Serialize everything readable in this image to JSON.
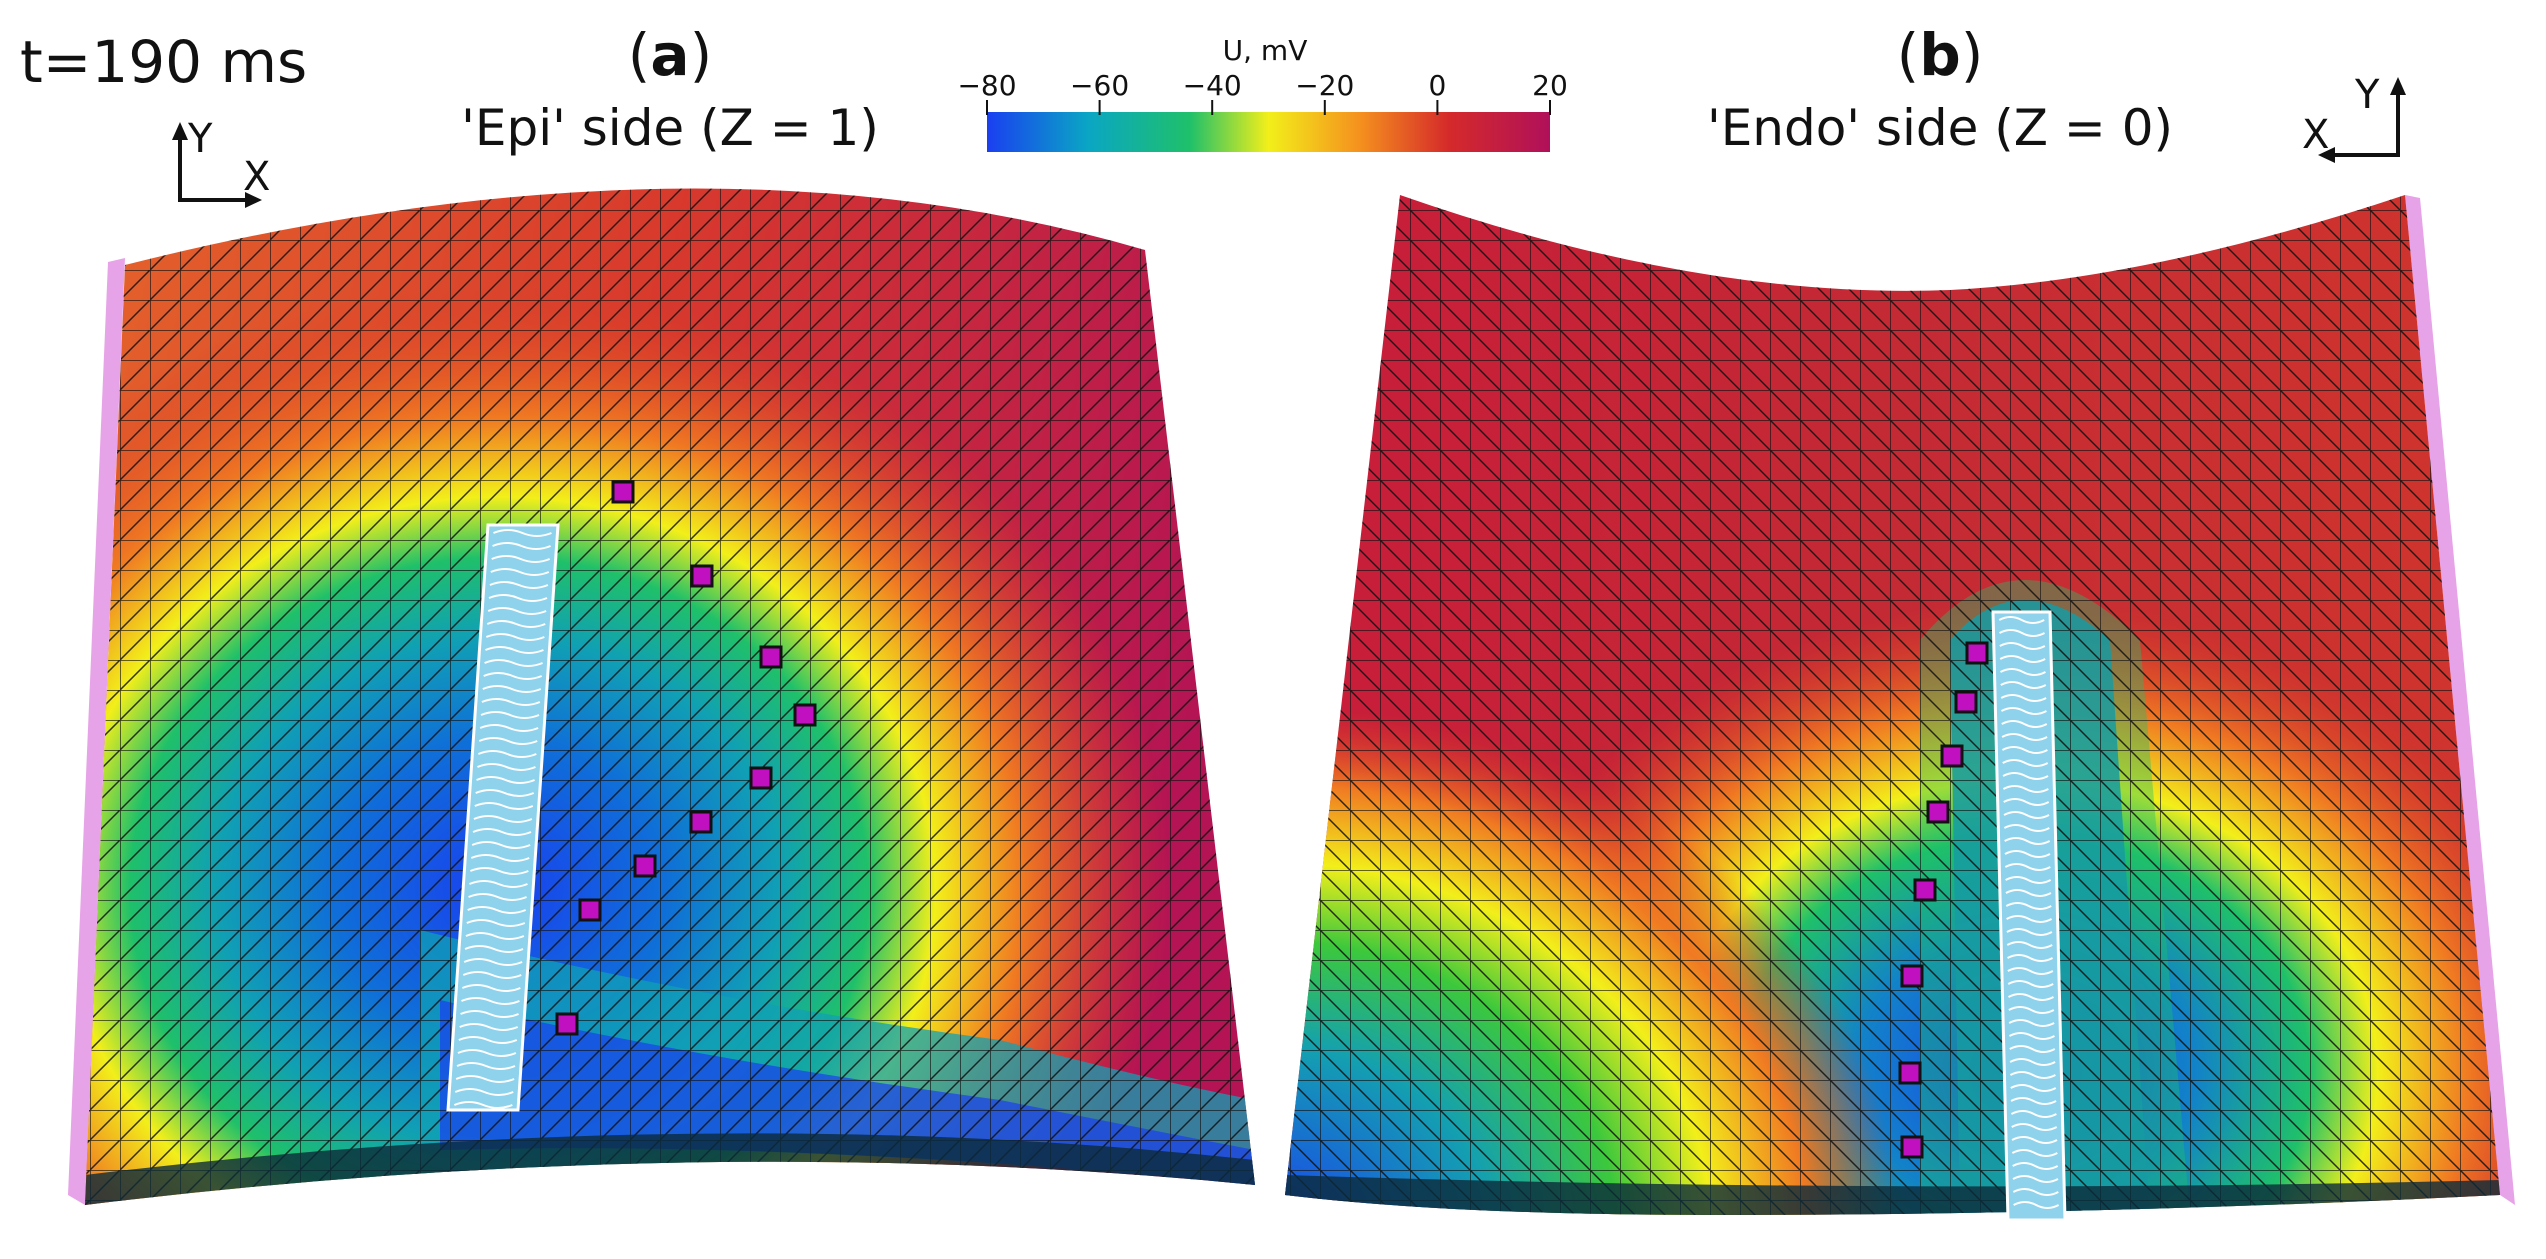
{
  "time_label": "t=190 ms",
  "panels": [
    {
      "letter": "a",
      "subtitle": "'Epi' side (Z = 1)",
      "axes": {
        "x": "X",
        "y": "Y"
      }
    },
    {
      "letter": "b",
      "subtitle": "'Endo' side (Z = 0)",
      "axes": {
        "x": "X",
        "y": "Y"
      }
    }
  ],
  "colorbar": {
    "title": "U, mV",
    "ticks": [
      "−80",
      "−60",
      "−40",
      "−20",
      "0",
      "20"
    ],
    "range": [
      -80,
      20
    ],
    "colors": [
      "#1a3ff0",
      "#0aa6c4",
      "#1fc06a",
      "#f2ef1a",
      "#f5921e",
      "#d52a2a",
      "#b0105a"
    ]
  },
  "mesh": {
    "edge_color": "#111111",
    "electrode_color": "#c010c0",
    "ablation_line_color": "#ffffff",
    "edge_strip_color": "#e7a3e7"
  }
}
